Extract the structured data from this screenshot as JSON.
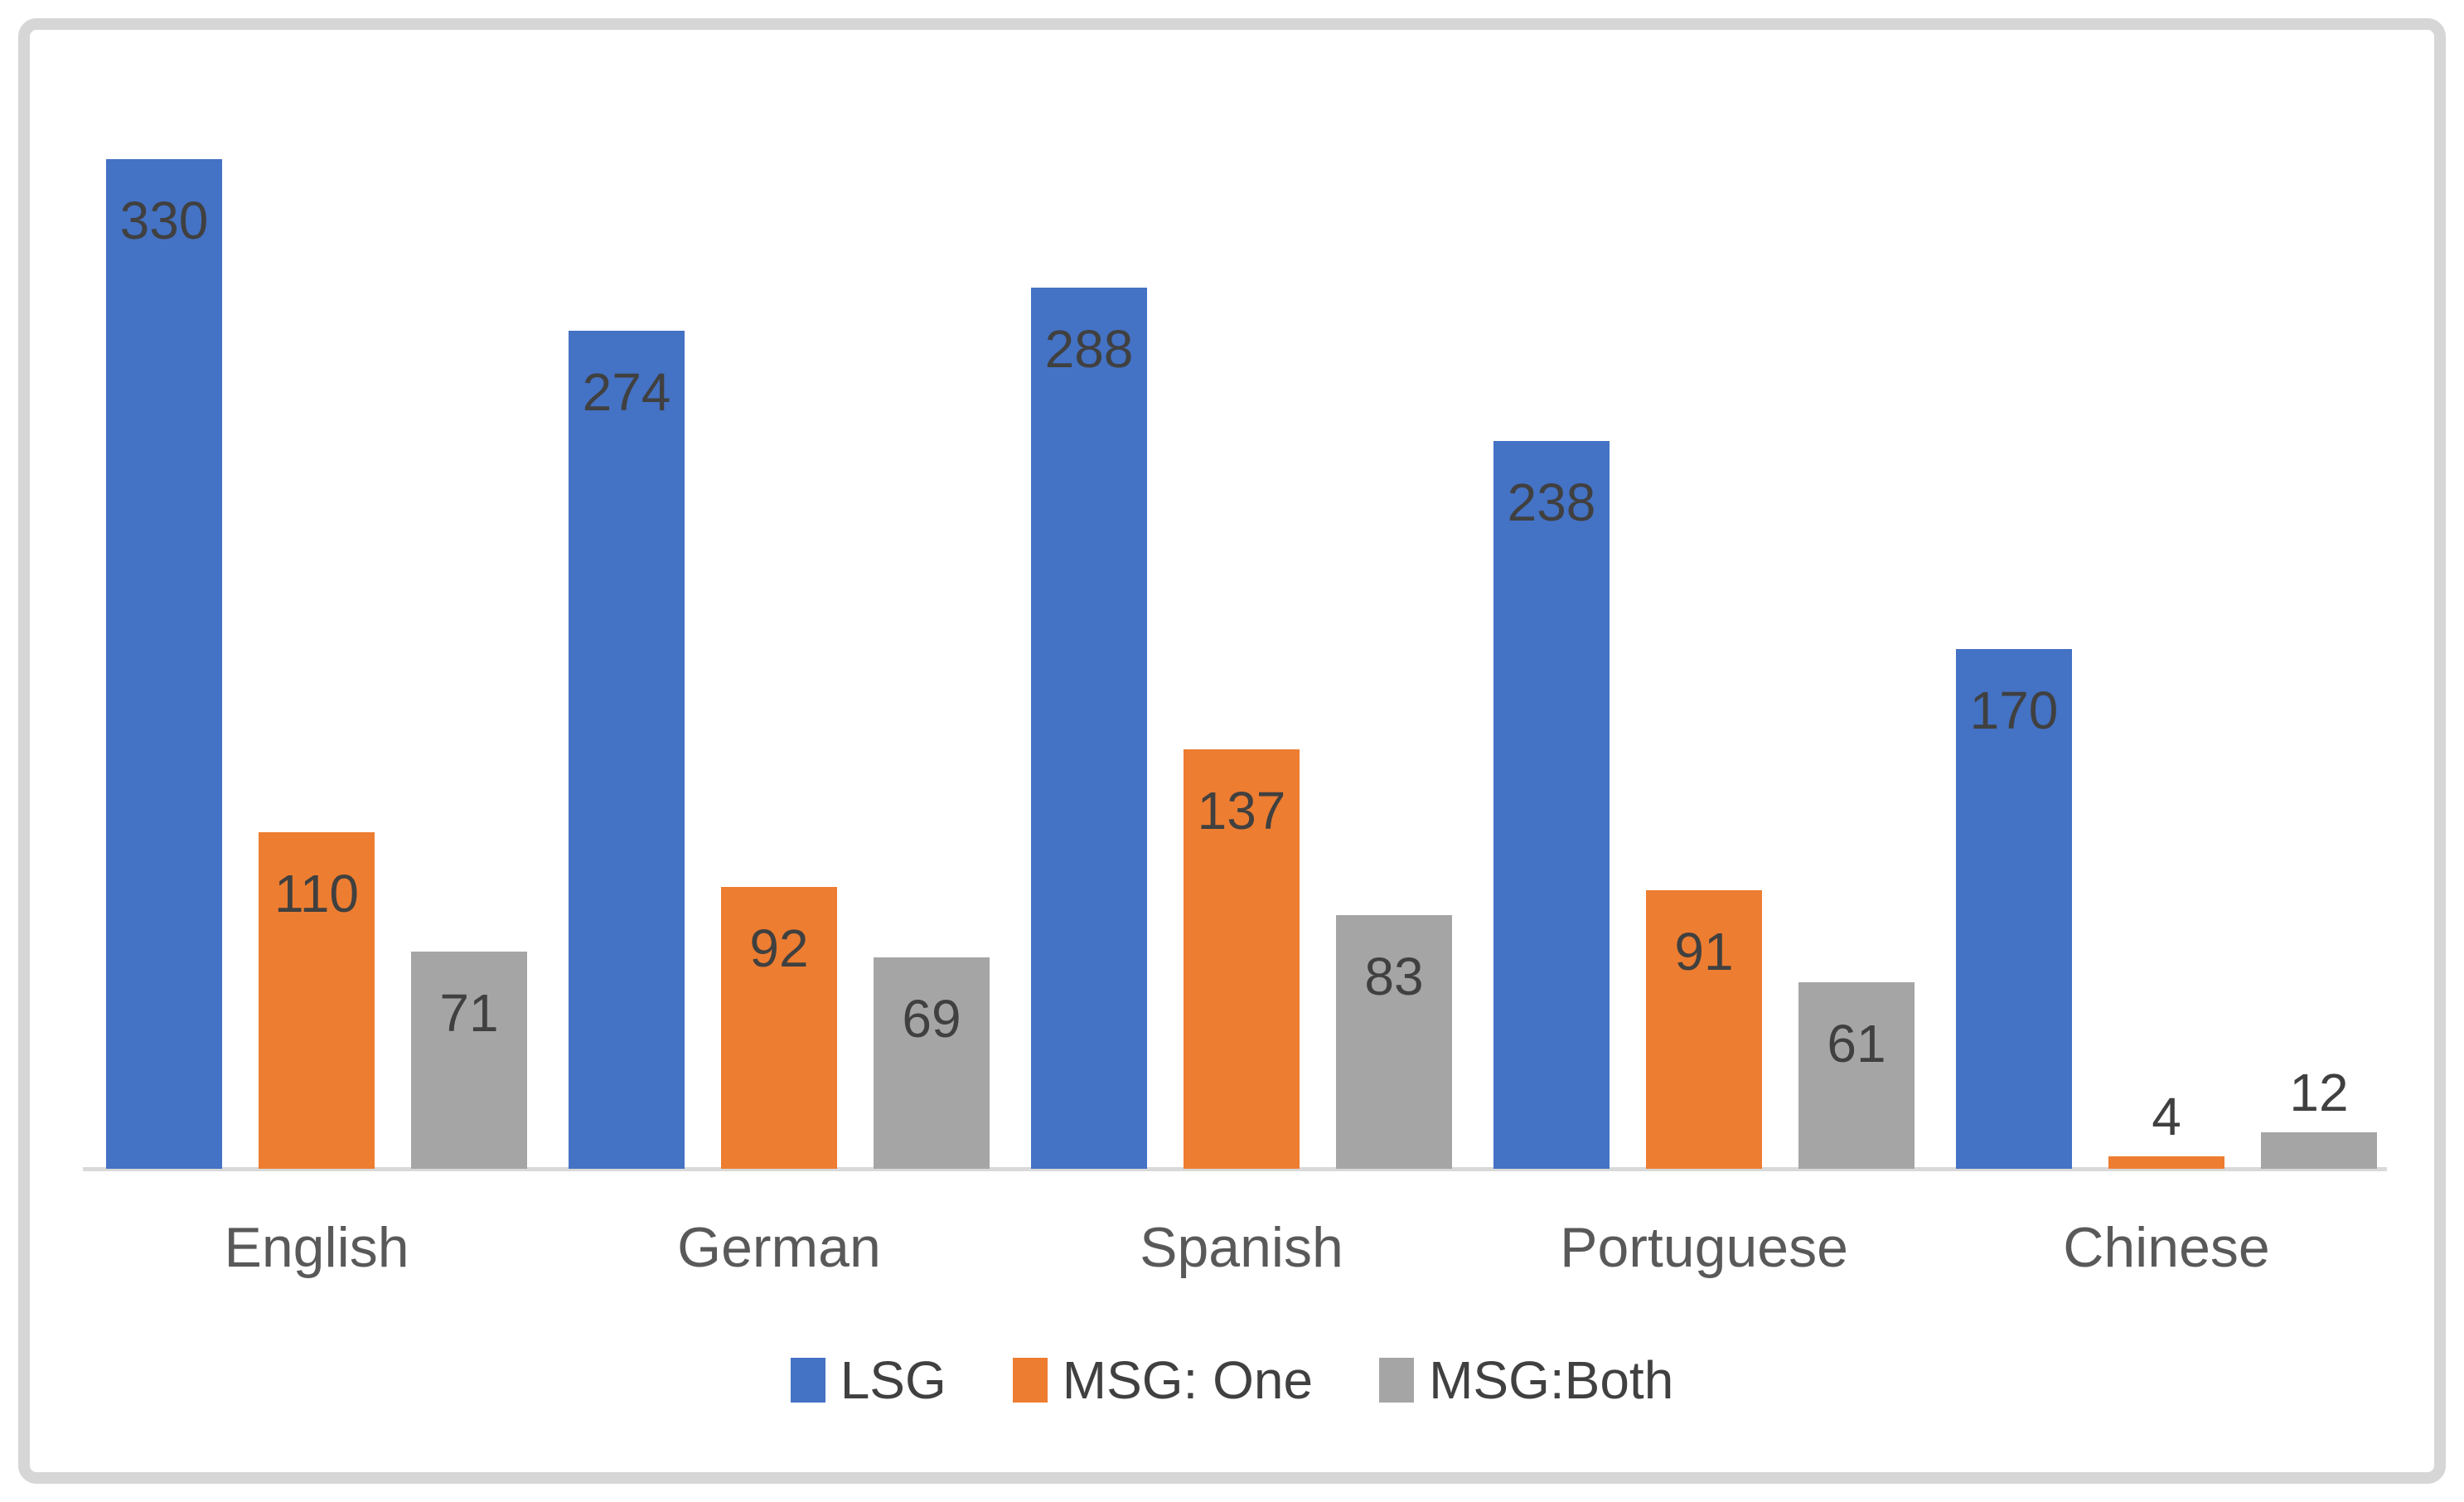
{
  "chart_data": {
    "type": "bar",
    "categories": [
      "English",
      "German",
      "Spanish",
      "Portuguese",
      "Chinese"
    ],
    "series": [
      {
        "name": "LSG",
        "color": "#4472C4",
        "values": [
          330,
          274,
          288,
          238,
          170
        ]
      },
      {
        "name": "MSG: One",
        "color": "#ED7D31",
        "values": [
          110,
          92,
          137,
          91,
          4
        ]
      },
      {
        "name": "MSG:Both",
        "color": "#A5A5A5",
        "values": [
          71,
          69,
          83,
          61,
          12
        ]
      }
    ],
    "title": "",
    "xlabel": "",
    "ylabel": "",
    "ylim": [
      0,
      350
    ],
    "grid": false,
    "y_axis_visible": false,
    "legend_position": "bottom",
    "data_labels": "inside-end",
    "data_label_color": "#404040",
    "category_label_color": "#595959",
    "axis_line_color": "#D9D9D9",
    "frame_border_color": "#D6D6D6",
    "background_color": "#FFFFFF"
  }
}
